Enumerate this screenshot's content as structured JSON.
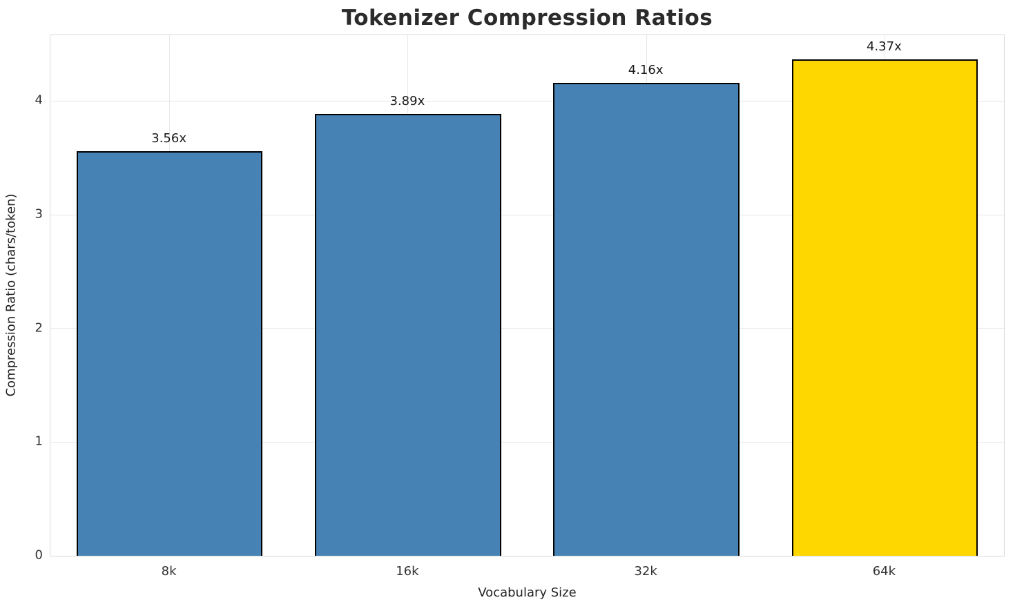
{
  "title": "Tokenizer Compression Ratios",
  "chart_data": {
    "type": "bar",
    "title": "Tokenizer Compression Ratios",
    "categories": [
      "8k",
      "16k",
      "32k",
      "64k"
    ],
    "values": [
      3.56,
      3.89,
      4.16,
      4.37
    ],
    "bar_labels": [
      "3.56x",
      "3.89x",
      "4.16x",
      "4.37x"
    ],
    "bar_colors": [
      "#4682B4",
      "#4682B4",
      "#4682B4",
      "#FFD700"
    ],
    "bar_edge_color": "#000000",
    "bar_width_fraction": 0.78,
    "xlabel": "Vocabulary Size",
    "ylabel": "Compression Ratio (chars/token)",
    "yticks": [
      0,
      1,
      2,
      3,
      4
    ],
    "ylim": [
      0,
      4.58
    ],
    "grid": true,
    "legend_position": "none"
  }
}
